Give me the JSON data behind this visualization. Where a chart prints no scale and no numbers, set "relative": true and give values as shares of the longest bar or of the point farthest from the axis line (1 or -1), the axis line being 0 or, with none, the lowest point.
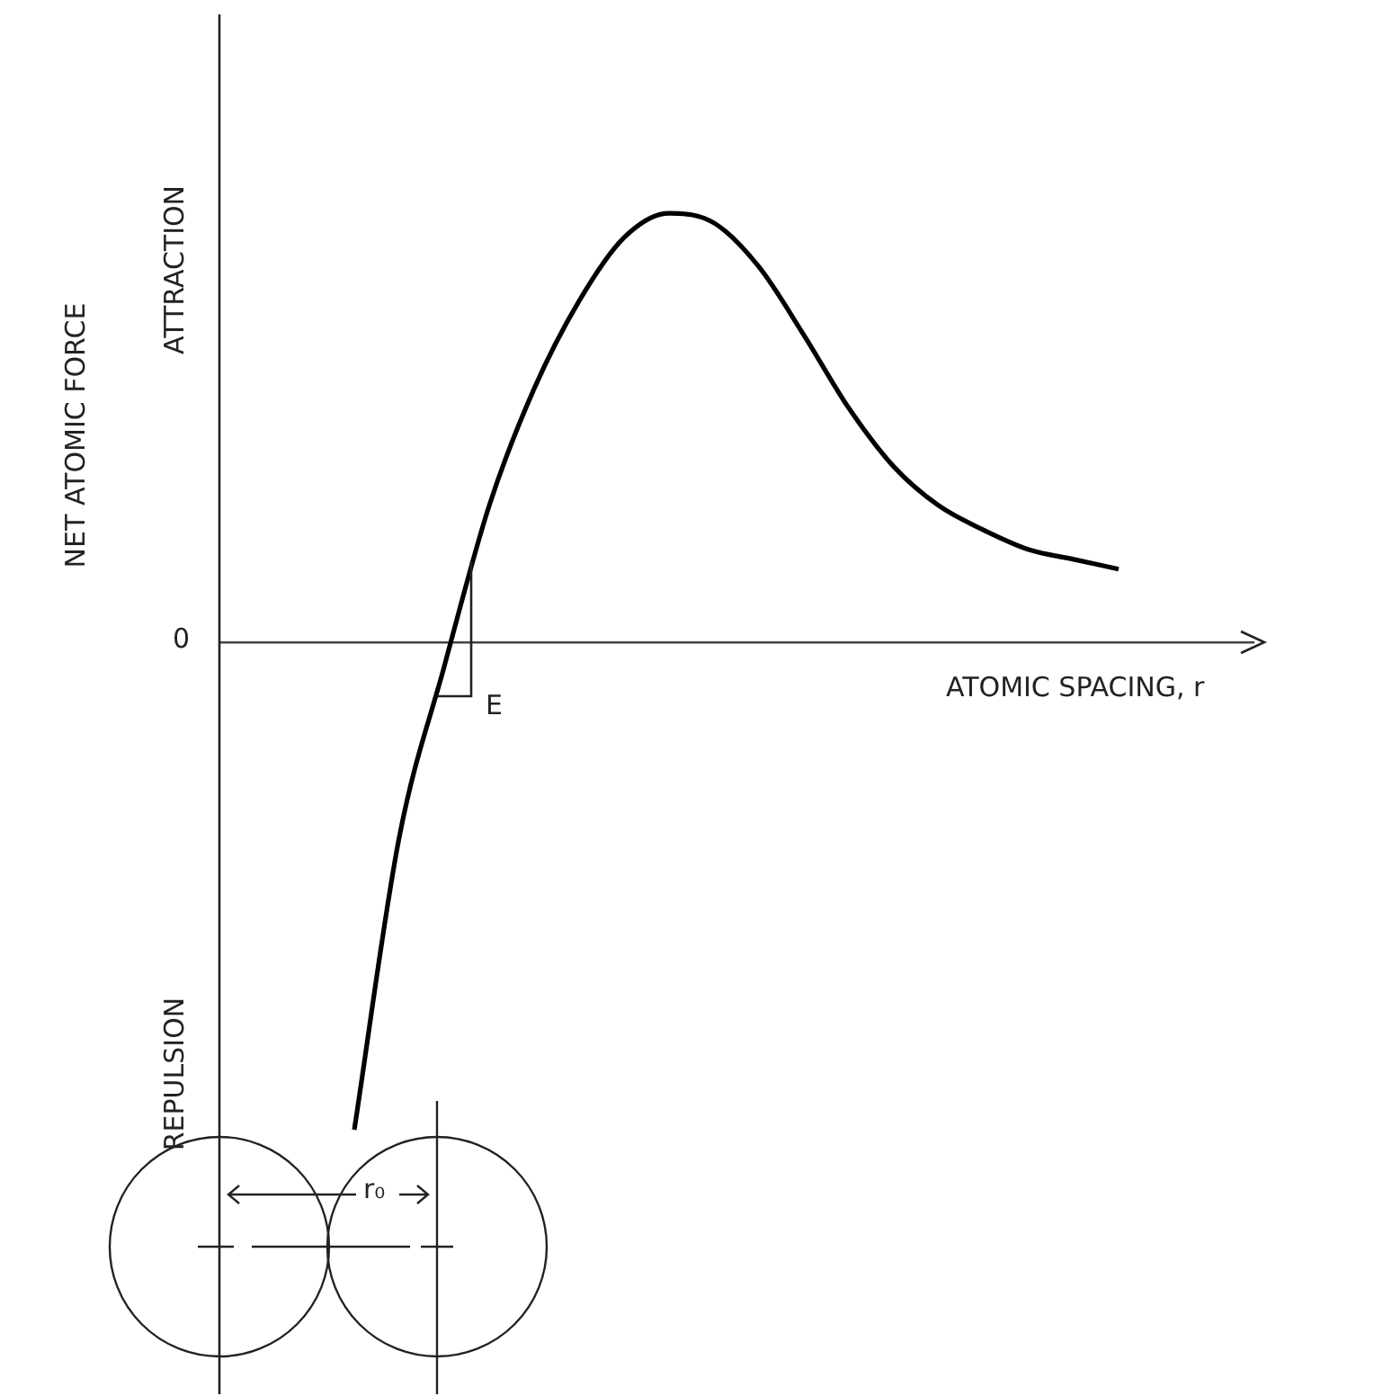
{
  "chart_data": {
    "type": "line",
    "relative": true,
    "xlabel": "ATOMIC SPACING, r",
    "ylabel": "NET ATOMIC FORCE",
    "categories": [
      null,
      null,
      null,
      null,
      null,
      null,
      null,
      null,
      null,
      null,
      null,
      null,
      null,
      null,
      null,
      null,
      null,
      null,
      null,
      null,
      null,
      null,
      null,
      null
    ],
    "values": [
      null,
      null,
      null,
      -1.0,
      -0.4,
      -0.05,
      0.28,
      0.52,
      0.7,
      0.83,
      0.88,
      0.86,
      0.77,
      0.63,
      0.48,
      0.36,
      0.28,
      0.23,
      0.19,
      0.17,
      0.15,
      null,
      null,
      null
    ],
    "color": "#000000",
    "marker": "none",
    "annotations": [
      "0",
      "ATTRACTION",
      "REPULSION",
      "E",
      "r₀"
    ]
  }
}
